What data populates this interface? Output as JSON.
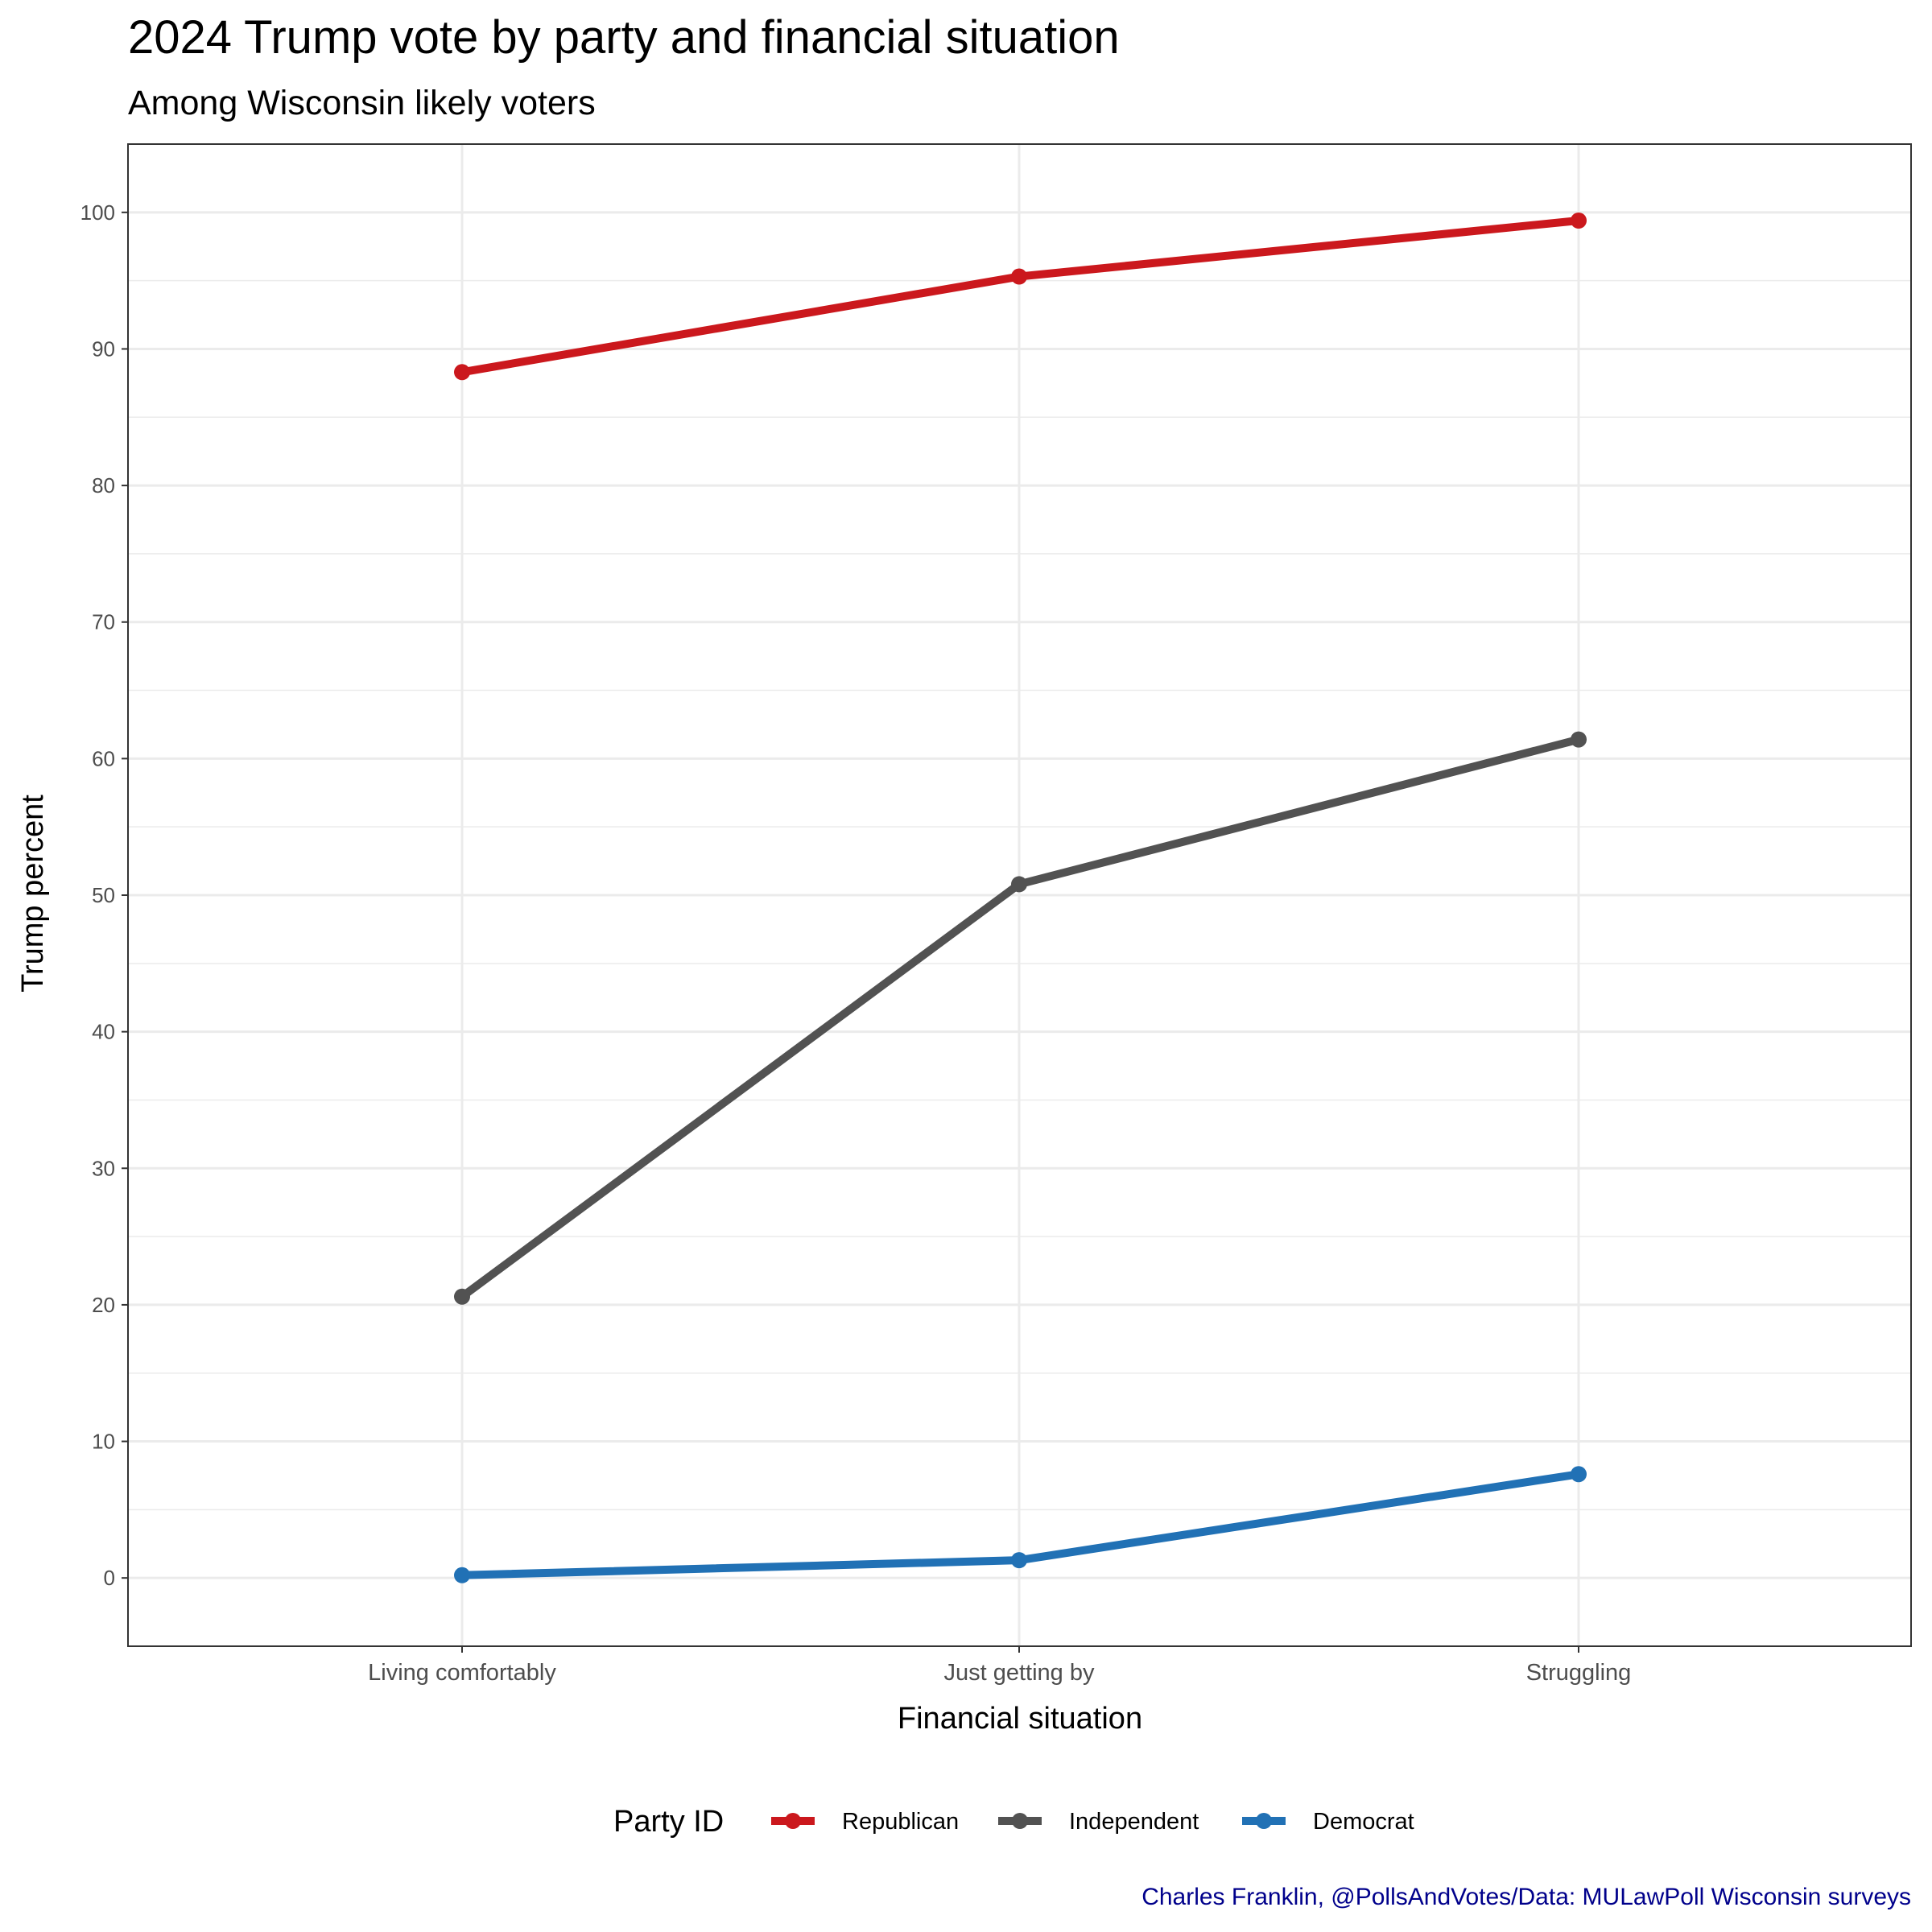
{
  "chart_data": {
    "type": "line",
    "title": "2024 Trump vote by party and financial situation",
    "subtitle": "Among Wisconsin likely voters",
    "xlabel": "Financial situation",
    "ylabel": "Trump percent",
    "categories": [
      "Living comfortably",
      "Just getting by",
      "Struggling"
    ],
    "yticks": [
      0,
      10,
      20,
      30,
      40,
      50,
      60,
      70,
      80,
      90,
      100
    ],
    "ylim": [
      -5,
      105
    ],
    "grid": true,
    "legend_title": "Party ID",
    "legend_position": "bottom",
    "series": [
      {
        "name": "Republican",
        "color": "#CB181D",
        "values": [
          88.3,
          95.3,
          99.4
        ]
      },
      {
        "name": "Independent",
        "color": "#525252",
        "values": [
          20.6,
          50.8,
          61.4
        ]
      },
      {
        "name": "Democrat",
        "color": "#2171B5",
        "values": [
          0.2,
          1.3,
          7.6
        ]
      }
    ],
    "caption": "Charles Franklin, @PollsAndVotes/Data: MULawPoll Wisconsin surveys",
    "caption_color": "#00008B"
  }
}
